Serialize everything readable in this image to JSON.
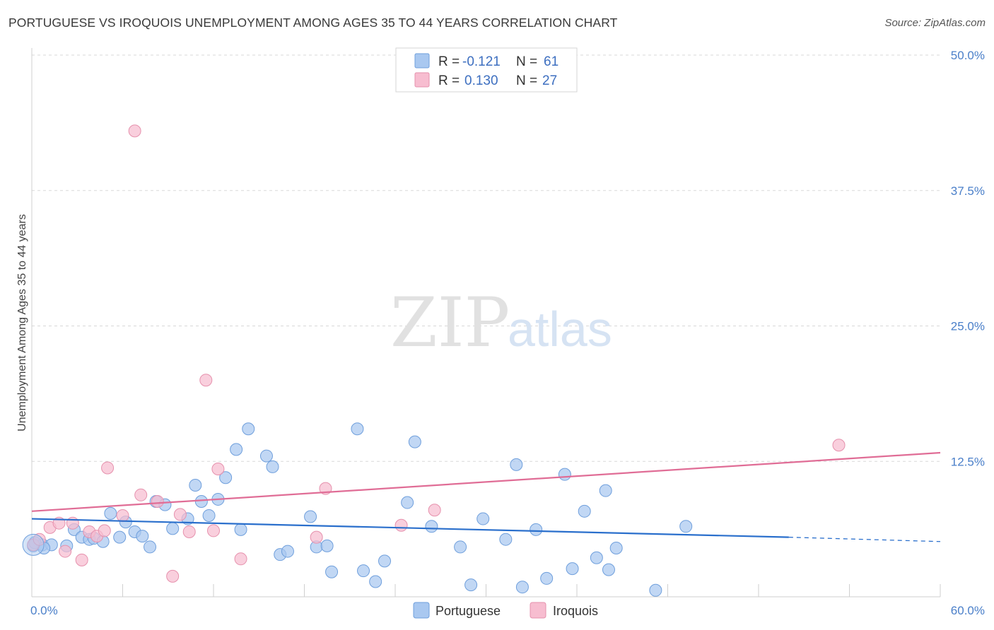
{
  "title": "PORTUGUESE VS IROQUOIS UNEMPLOYMENT AMONG AGES 35 TO 44 YEARS CORRELATION CHART",
  "source": "Source: ZipAtlas.com",
  "watermark": {
    "zip": "ZIP",
    "atlas": "atlas"
  },
  "colors": {
    "blue_fill": "#a9c8f0",
    "blue_stroke": "#6f9fdc",
    "blue_line": "#2a6fcc",
    "pink_fill": "#f7bdd0",
    "pink_stroke": "#e691ad",
    "pink_line": "#e06d96",
    "grid": "#d8d8d8",
    "axis_label": "#4a7fc9"
  },
  "legend": [
    {
      "r_label": "R =",
      "r_value": "-0.121",
      "n_label": "N =",
      "n_value": "61"
    },
    {
      "r_label": "R =",
      "r_value": "0.130",
      "n_label": "N =",
      "n_value": "27"
    }
  ],
  "chart_data": {
    "type": "scatter",
    "title": "PORTUGUESE VS IROQUOIS UNEMPLOYMENT AMONG AGES 35 TO 44 YEARS CORRELATION CHART",
    "xlabel": "",
    "ylabel": "Unemployment Among Ages 35 to 44 years",
    "xlim": [
      0,
      60
    ],
    "ylim": [
      0,
      50
    ],
    "x_tick_labels": [
      "0.0%",
      "60.0%"
    ],
    "y_tick_labels": [
      "12.5%",
      "25.0%",
      "37.5%",
      "50.0%"
    ],
    "y_ticks": [
      12.5,
      25.0,
      37.5,
      50.0
    ],
    "series": [
      {
        "name": "Portuguese",
        "color": "#a9c8f0",
        "points": [
          [
            0.1,
            4.7
          ],
          [
            0.7,
            4.8
          ],
          [
            1.3,
            4.8
          ],
          [
            2.3,
            4.7
          ],
          [
            2.8,
            6.2
          ],
          [
            3.3,
            5.5
          ],
          [
            3.8,
            5.3
          ],
          [
            4.1,
            5.4
          ],
          [
            4.7,
            5.1
          ],
          [
            5.2,
            7.7
          ],
          [
            5.8,
            5.5
          ],
          [
            6.2,
            6.9
          ],
          [
            6.8,
            6.0
          ],
          [
            7.3,
            5.6
          ],
          [
            7.8,
            4.6
          ],
          [
            8.2,
            8.8
          ],
          [
            8.8,
            8.5
          ],
          [
            9.3,
            6.3
          ],
          [
            10.3,
            7.2
          ],
          [
            10.8,
            10.3
          ],
          [
            11.2,
            8.8
          ],
          [
            11.7,
            7.5
          ],
          [
            12.3,
            9.0
          ],
          [
            12.8,
            11.0
          ],
          [
            13.5,
            13.6
          ],
          [
            13.8,
            6.2
          ],
          [
            14.3,
            15.5
          ],
          [
            15.5,
            13.0
          ],
          [
            15.9,
            12.0
          ],
          [
            16.4,
            3.9
          ],
          [
            16.9,
            4.2
          ],
          [
            18.4,
            7.4
          ],
          [
            18.8,
            4.6
          ],
          [
            19.5,
            4.7
          ],
          [
            19.8,
            2.3
          ],
          [
            21.5,
            15.5
          ],
          [
            21.9,
            2.4
          ],
          [
            22.7,
            1.4
          ],
          [
            23.3,
            3.3
          ],
          [
            24.8,
            8.7
          ],
          [
            25.3,
            14.3
          ],
          [
            26.4,
            6.5
          ],
          [
            28.3,
            4.6
          ],
          [
            29.0,
            1.1
          ],
          [
            29.8,
            7.2
          ],
          [
            31.3,
            5.3
          ],
          [
            32.0,
            12.2
          ],
          [
            32.4,
            0.9
          ],
          [
            33.3,
            6.2
          ],
          [
            34.0,
            1.7
          ],
          [
            35.2,
            11.3
          ],
          [
            35.7,
            2.6
          ],
          [
            36.5,
            7.9
          ],
          [
            37.3,
            3.6
          ],
          [
            37.9,
            9.8
          ],
          [
            38.1,
            2.5
          ],
          [
            38.6,
            4.5
          ],
          [
            41.2,
            0.6
          ],
          [
            43.2,
            6.5
          ],
          [
            0.2,
            5.0
          ],
          [
            0.8,
            4.5
          ]
        ]
      },
      {
        "name": "Iroquois",
        "color": "#f7bdd0",
        "points": [
          [
            0.1,
            4.8
          ],
          [
            0.5,
            5.3
          ],
          [
            1.2,
            6.4
          ],
          [
            1.8,
            6.8
          ],
          [
            2.2,
            4.2
          ],
          [
            2.7,
            6.8
          ],
          [
            3.3,
            3.4
          ],
          [
            3.8,
            6.0
          ],
          [
            4.3,
            5.6
          ],
          [
            4.8,
            6.1
          ],
          [
            5.0,
            11.9
          ],
          [
            6.0,
            7.5
          ],
          [
            6.8,
            43.0
          ],
          [
            7.2,
            9.4
          ],
          [
            8.3,
            8.8
          ],
          [
            9.3,
            1.9
          ],
          [
            9.8,
            7.6
          ],
          [
            10.4,
            6.0
          ],
          [
            11.5,
            20.0
          ],
          [
            12.0,
            6.1
          ],
          [
            12.3,
            11.8
          ],
          [
            13.8,
            3.5
          ],
          [
            18.8,
            5.5
          ],
          [
            19.4,
            10.0
          ],
          [
            24.4,
            6.6
          ],
          [
            26.6,
            8.0
          ],
          [
            53.3,
            14.0
          ]
        ]
      }
    ],
    "trend_lines": [
      {
        "name": "Portuguese",
        "x_start": 0,
        "y_start": 7.2,
        "x_solid_end": 50,
        "y_solid_end": 5.5,
        "x_end": 60,
        "y_end": 5.1,
        "dashed_after": 50
      },
      {
        "name": "Iroquois",
        "x_start": 0,
        "y_start": 7.9,
        "x_end": 60,
        "y_end": 13.3
      }
    ],
    "legend_position": "top-center"
  }
}
